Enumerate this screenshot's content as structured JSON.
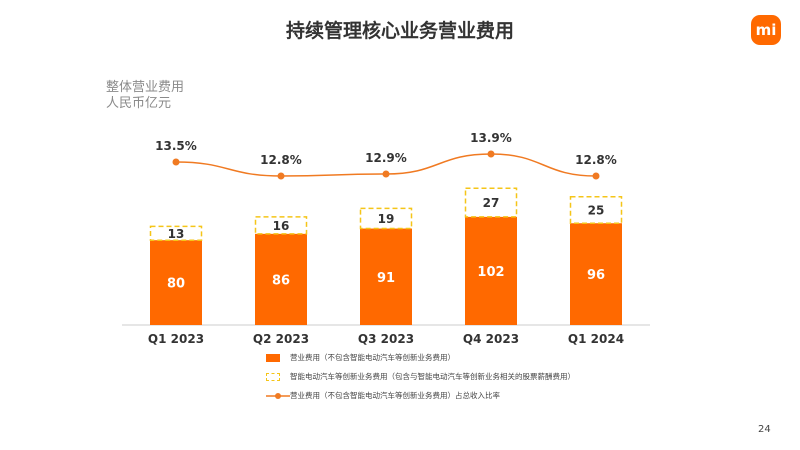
{
  "title": "持续管理核心业务营业费用",
  "logo": "mi",
  "page_number": "24",
  "colors": {
    "accent": "#ff6900",
    "dashed": "#f5c518",
    "line": "#f07a22"
  },
  "chart_data": {
    "type": "bar",
    "ylabel_lines": [
      "整体营业费用",
      "人民币亿元"
    ],
    "categories": [
      "Q1 2023",
      "Q2 2023",
      "Q3 2023",
      "Q4 2023",
      "Q1 2024"
    ],
    "series": [
      {
        "name": "营业费用（不包含智能电动汽车等创新业务费用）",
        "values": [
          80,
          86,
          91,
          102,
          96
        ],
        "labels": [
          "80",
          "86",
          "91",
          "102",
          "96"
        ]
      },
      {
        "name": "智能电动汽车等创新业务费用（包含与智能电动汽车等创新业务相关的股票薪酬费用）",
        "values": [
          13,
          16,
          19,
          27,
          25
        ],
        "labels": [
          "13",
          "16",
          "19",
          "27",
          "25"
        ]
      },
      {
        "name": "营业费用（不包含智能电动汽车等创新业务费用）占总收入比率",
        "type": "line",
        "values": [
          13.5,
          12.8,
          12.9,
          13.9,
          12.8
        ],
        "labels": [
          "13.5%",
          "12.8%",
          "12.9%",
          "13.9%",
          "12.8%"
        ]
      }
    ]
  }
}
